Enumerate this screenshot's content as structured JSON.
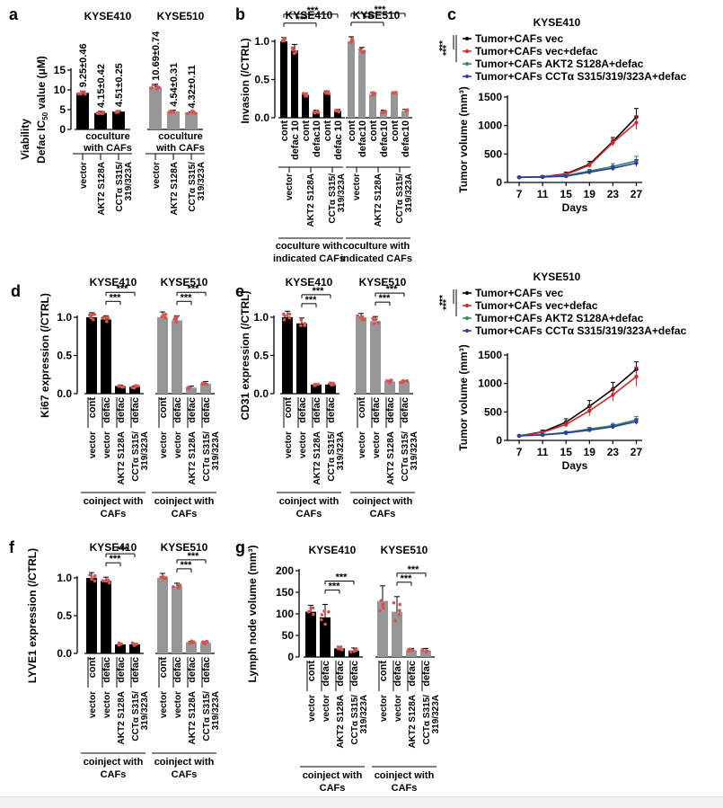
{
  "colors": {
    "black": "#000000",
    "gray": "#969696",
    "dot": "#d9534f",
    "vec": "#000000",
    "vec_defac": "#d7262b",
    "akt": "#2e8b57",
    "cct": "#2b3f9e"
  },
  "panel_letters": {
    "a": "a",
    "b": "b",
    "c": "c",
    "d": "d",
    "e": "e",
    "f": "f",
    "g": "g"
  },
  "sig": "***",
  "chart_data": [
    {
      "id": "a",
      "type": "bar",
      "ylabel_line1": "Viability",
      "ylabel_line2": "Defac IC",
      "ylabel_sub": "50",
      "ylabel_tail": " value (μM)",
      "ylim": [
        0,
        15
      ],
      "yticks": [
        0,
        5,
        10,
        15
      ],
      "groups": [
        {
          "name": "KYSE410",
          "color": "black",
          "categories": [
            "vector",
            "AKT2 S128A",
            "CCTα S315/ 319/323A"
          ],
          "values": [
            9.25,
            4.15,
            4.51
          ],
          "value_labels": [
            "9.25±0.46",
            "4.15±0.42",
            "4.51±0.25"
          ],
          "errors": [
            0.46,
            0.42,
            0.25
          ]
        },
        {
          "name": "KYSE510",
          "color": "gray",
          "categories": [
            "vector",
            "AKT2 S128A",
            "CCTα S315/ 319/323A"
          ],
          "values": [
            10.69,
            4.54,
            4.32
          ],
          "value_labels": [
            "10.69±0.74",
            "4.54±0.31",
            "4.32±0.11"
          ],
          "errors": [
            0.74,
            0.31,
            0.11
          ]
        }
      ],
      "group_caption": "coculture with CAFs"
    },
    {
      "id": "b",
      "type": "bar",
      "ylabel": "Invasion (/CTRL)",
      "ylim": [
        0,
        1.0
      ],
      "yticks": [
        0.0,
        0.5,
        1.0
      ],
      "treat_labels": [
        "cont",
        "defac 10",
        "cont",
        "defac10",
        "cont",
        "defac 10"
      ],
      "treat_labels_510": [
        "cont",
        "defac10",
        "cont",
        "defac10",
        "cont",
        "defac10"
      ],
      "cells": [
        "vector",
        "AKT2 S128A",
        "CCTα S315/ 319/323A"
      ],
      "groups": [
        {
          "name": "KYSE410",
          "color": "black",
          "values": [
            1.0,
            0.88,
            0.3,
            0.08,
            0.33,
            0.09
          ],
          "errors": [
            0.05,
            0.08,
            0.02,
            0.02,
            0.02,
            0.02
          ]
        },
        {
          "name": "KYSE510",
          "color": "gray",
          "values": [
            1.0,
            0.87,
            0.31,
            0.08,
            0.32,
            0.09
          ],
          "errors": [
            0.06,
            0.05,
            0.02,
            0.02,
            0.02,
            0.02
          ]
        }
      ],
      "group_caption": "coculture with indicated CAFs"
    },
    {
      "id": "c1",
      "type": "line",
      "title": "KYSE410",
      "xlabel": "Days",
      "ylabel": "Tumor volume (mm³)",
      "x": [
        7,
        11,
        15,
        19,
        23,
        27
      ],
      "ylim": [
        0,
        1500
      ],
      "yticks": [
        0,
        500,
        1000,
        1500
      ],
      "series": [
        {
          "name": "Tumor+CAFs vec",
          "color": "vec",
          "values": [
            90,
            100,
            150,
            320,
            720,
            1150
          ],
          "errors": [
            10,
            15,
            30,
            50,
            70,
            150
          ]
        },
        {
          "name": "Tumor+CAFs vec+defac",
          "color": "vec_defac",
          "values": [
            90,
            100,
            140,
            300,
            700,
            1050
          ],
          "errors": [
            10,
            15,
            25,
            40,
            60,
            120
          ]
        },
        {
          "name": "Tumor+CAFs AKT2 S128A+defac",
          "color": "akt",
          "values": [
            90,
            95,
            120,
            200,
            280,
            380
          ],
          "errors": [
            8,
            10,
            20,
            30,
            50,
            80
          ]
        },
        {
          "name": "Tumor+CAFs CCTα S315/319/323A+defac",
          "color": "cct",
          "values": [
            90,
            95,
            110,
            180,
            250,
            340
          ],
          "errors": [
            8,
            10,
            15,
            25,
            40,
            60
          ]
        }
      ]
    },
    {
      "id": "c2",
      "type": "line",
      "title": "KYSE510",
      "xlabel": "Days",
      "ylabel": "Tumor volume (mm³)",
      "x": [
        7,
        11,
        15,
        19,
        23,
        27
      ],
      "ylim": [
        0,
        1500
      ],
      "yticks": [
        0,
        500,
        1000,
        1500
      ],
      "series": [
        {
          "name": "Tumor+CAFs vec",
          "color": "vec",
          "values": [
            80,
            150,
            320,
            600,
            900,
            1250
          ],
          "errors": [
            10,
            30,
            60,
            100,
            120,
            130
          ]
        },
        {
          "name": "Tumor+CAFs vec+defac",
          "color": "vec_defac",
          "values": [
            80,
            140,
            280,
            520,
            800,
            1120
          ],
          "errors": [
            10,
            25,
            50,
            90,
            110,
            170
          ]
        },
        {
          "name": "Tumor+CAFs AKT2 S128A+defac",
          "color": "akt",
          "values": [
            80,
            100,
            140,
            200,
            260,
            360
          ],
          "errors": [
            8,
            12,
            20,
            30,
            40,
            60
          ]
        },
        {
          "name": "Tumor+CAFs CCTα S315/319/323A+defac",
          "color": "cct",
          "values": [
            80,
            95,
            130,
            180,
            240,
            330
          ],
          "errors": [
            8,
            10,
            15,
            25,
            35,
            50
          ]
        }
      ]
    },
    {
      "id": "d",
      "type": "bar",
      "ylabel": "Ki67 expression (/CTRL)",
      "ylim": [
        0,
        1.0
      ],
      "yticks": [
        0.0,
        0.5,
        1.0
      ],
      "treat_labels": [
        "cont",
        "defac",
        "defac",
        "defac"
      ],
      "cells": [
        "vector",
        "vector",
        "AKT2 S128A",
        "CCTα S315/ 319/323A"
      ],
      "groups": [
        {
          "name": "KYSE410",
          "color": "black",
          "values": [
            1.0,
            0.97,
            0.1,
            0.09
          ],
          "errors": [
            0.06,
            0.05,
            0.01,
            0.01
          ]
        },
        {
          "name": "KYSE510",
          "color": "gray",
          "values": [
            1.0,
            0.96,
            0.08,
            0.13
          ],
          "errors": [
            0.07,
            0.06,
            0.02,
            0.03
          ]
        }
      ],
      "group_caption": "coinject with CAFs"
    },
    {
      "id": "e",
      "type": "bar",
      "ylabel": "CD31 expression (/CTRL)",
      "ylim": [
        0,
        1.0
      ],
      "yticks": [
        0.0,
        0.5,
        1.0
      ],
      "treat_labels": [
        "cont",
        "defac",
        "defac",
        "defac"
      ],
      "cells": [
        "vector",
        "vector",
        "AKT2 S128A",
        "CCTα S315/ 319/323A"
      ],
      "groups": [
        {
          "name": "KYSE410",
          "color": "black",
          "values": [
            1.0,
            0.92,
            0.12,
            0.12
          ],
          "errors": [
            0.08,
            0.07,
            0.01,
            0.01
          ]
        },
        {
          "name": "KYSE510",
          "color": "gray",
          "values": [
            1.0,
            0.95,
            0.16,
            0.16
          ],
          "errors": [
            0.05,
            0.06,
            0.01,
            0.01
          ]
        }
      ],
      "group_caption": "coinject with CAFs"
    },
    {
      "id": "f",
      "type": "bar",
      "ylabel": "LYVE1 expression (/CTRL)",
      "ylim": [
        0,
        1.0
      ],
      "yticks": [
        0.0,
        0.5,
        1.0
      ],
      "treat_labels": [
        "cont",
        "defac",
        "defac",
        "defac"
      ],
      "cells": [
        "vector",
        "vector",
        "AKT2 S128A",
        "CCTα S315/ 319/323A"
      ],
      "groups": [
        {
          "name": "KYSE410",
          "color": "black",
          "values": [
            1.0,
            0.96,
            0.12,
            0.12
          ],
          "errors": [
            0.07,
            0.05,
            0.01,
            0.01
          ]
        },
        {
          "name": "KYSE510",
          "color": "gray",
          "values": [
            1.0,
            0.89,
            0.15,
            0.14
          ],
          "errors": [
            0.06,
            0.04,
            0.01,
            0.01
          ]
        }
      ],
      "group_caption": "coinject with CAFs"
    },
    {
      "id": "g",
      "type": "bar",
      "ylabel": "Lymph node volume (mm³)",
      "ylim": [
        0,
        200
      ],
      "yticks": [
        0,
        50,
        100,
        150,
        200
      ],
      "treat_labels": [
        "cont",
        "defac",
        "defac",
        "defac"
      ],
      "cells": [
        "vector",
        "vector",
        "AKT2 S128A",
        "CCTα S315/ 319/323A"
      ],
      "groups": [
        {
          "name": "KYSE410",
          "color": "black",
          "values": [
            105,
            92,
            20,
            15
          ],
          "errors": [
            15,
            30,
            5,
            6
          ]
        },
        {
          "name": "KYSE510",
          "color": "gray",
          "values": [
            130,
            105,
            15,
            15
          ],
          "errors": [
            35,
            35,
            5,
            5
          ]
        }
      ],
      "group_caption": "coinject with CAFs"
    }
  ]
}
